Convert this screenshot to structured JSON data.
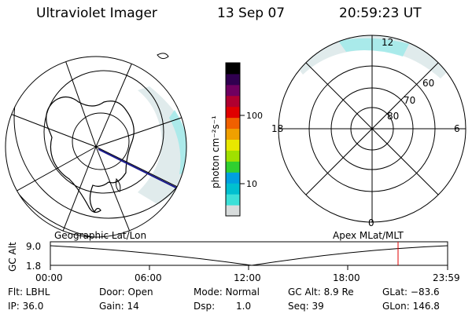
{
  "header": {
    "instrument": "Ultraviolet Imager",
    "date": "13 Sep 07",
    "time": "20:59:23 UT"
  },
  "colorbar": {
    "unit_label": "photon cm⁻²s⁻¹",
    "ticks": [
      "100",
      "10"
    ],
    "ticks_value": [
      100,
      10
    ],
    "colors": [
      "#d8dcdc",
      "#3ce0d8",
      "#00c0d0",
      "#00a0e0",
      "#30d030",
      "#a0e000",
      "#e8e800",
      "#f0a000",
      "#f06000",
      "#e00000",
      "#b00030",
      "#700060",
      "#300050",
      "#000000"
    ]
  },
  "left_map": {
    "caption": "Geographic Lat/Lon",
    "colors": {
      "aurora": "#cfe8ea",
      "aurora_strong": "#8ee8ea",
      "track": "#1a1a8c"
    }
  },
  "right_map": {
    "caption": "Apex MLat/MLT",
    "mlt_labels": [
      "12",
      "18",
      "6",
      "0"
    ],
    "mlat_labels": [
      "60",
      "70",
      "80"
    ]
  },
  "timeline": {
    "y_title": "GC Alt",
    "y_max": "9.0",
    "y_min": "1.8",
    "x_ticks": [
      "00:00",
      "06:00",
      "12:00",
      "18:00",
      "23:59"
    ],
    "marker_time": "20:59",
    "colors": {
      "marker": "#e00000"
    }
  },
  "info": {
    "flt": "Flt: LBHL",
    "ip": "IP: 36.0",
    "door": "Door: Open",
    "gain": "Gain: 14",
    "mode": "Mode: Normal",
    "dsp_label": "Dsp:",
    "dsp_value": "1.0",
    "gc_alt": "GC Alt: 8.9 Re",
    "seq": "Seq: 39",
    "glat": "GLat: −83.6",
    "glon": "GLon: 146.8"
  }
}
